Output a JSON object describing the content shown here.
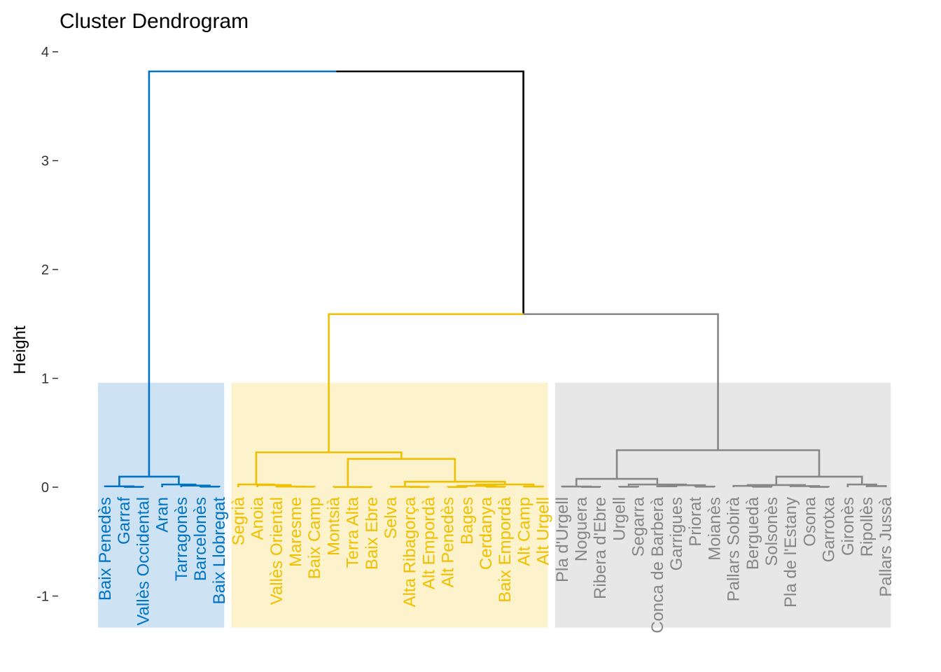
{
  "chart_data": {
    "type": "dendrogram",
    "title": "Cluster Dendrogram",
    "xlabel": "",
    "ylabel": "Height",
    "ylim": [
      -1.3,
      4.1
    ],
    "yticks": [
      -1,
      0,
      1,
      2,
      3,
      4
    ],
    "grid": false,
    "clusters": [
      {
        "name": "cluster-1",
        "color": "#0073C2",
        "fill": "#CDE3F3"
      },
      {
        "name": "cluster-2",
        "color": "#EFC000",
        "fill": "#FCF2CC"
      },
      {
        "name": "cluster-3",
        "color": "#868686",
        "fill": "#E7E7E7"
      }
    ],
    "rect_range": [
      0.96,
      -1.29
    ],
    "tree": {
      "h": 3.82,
      "c": [
        {
          "cluster": 0,
          "h": 0.097,
          "c": [
            {
              "h": 0.008,
              "c": [
                "Baix Penedès",
                {
                  "h": 0.003,
                  "c": [
                    "Garraf",
                    "Vallès Occidental"
                  ]
                }
              ]
            },
            {
              "h": 0.025,
              "c": [
                "Aran",
                {
                  "h": 0.015,
                  "c": [
                    "Tarragonès",
                    {
                      "h": 0.005,
                      "c": [
                        "Barcelonès",
                        "Baix Llobregat"
                      ]
                    }
                  ]
                }
              ]
            }
          ]
        },
        {
          "h": 1.59,
          "c": [
            {
              "cluster": 1,
              "h": 0.32,
              "c": [
                {
                  "h": 0.025,
                  "c": [
                    "Segrià",
                    {
                      "h": 0.02,
                      "c": [
                        "Anoia",
                        {
                          "h": 0.006,
                          "c": [
                            "Vallès Oriental",
                            {
                              "h": 0.004,
                              "c": [
                                "Maresme",
                                "Baix Camp"
                              ]
                            }
                          ]
                        }
                      ]
                    }
                  ]
                },
                {
                  "h": 0.26,
                  "c": [
                    {
                      "h": 0.002,
                      "c": [
                        "Montsià",
                        {
                          "h": 0.001,
                          "c": [
                            "Terra Alta",
                            "Baix Ebre"
                          ]
                        }
                      ]
                    },
                    {
                      "h": 0.05,
                      "c": [
                        {
                          "h": 0.004,
                          "c": [
                            "Selva",
                            {
                              "h": 0.002,
                              "c": [
                                "Alta Ribagorça",
                                "Alt Empordà"
                              ]
                            }
                          ]
                        },
                        {
                          "h": 0.025,
                          "c": [
                            {
                              "h": 0.012,
                              "c": [
                                {
                                  "h": 0.002,
                                  "c": [
                                    "Alt Penedès",
                                    "Bages"
                                  ]
                                },
                                {
                                  "h": 0.004,
                                  "c": [
                                    "Cerdanya",
                                    "Baix Empordà"
                                  ]
                                }
                              ]
                            },
                            {
                              "h": 0.006,
                              "c": [
                                "Alt Camp",
                                "Alt Urgell"
                              ]
                            }
                          ]
                        }
                      ]
                    }
                  ]
                }
              ]
            },
            {
              "cluster": 2,
              "h": 0.34,
              "c": [
                {
                  "h": 0.077,
                  "c": [
                    {
                      "h": 0.006,
                      "c": [
                        "Pla d'Urgell",
                        {
                          "h": 0.003,
                          "c": [
                            "Noguera",
                            "Ribera d'Ebre"
                          ]
                        }
                      ]
                    },
                    {
                      "h": 0.025,
                      "c": [
                        {
                          "h": 0.004,
                          "c": [
                            "Urgell",
                            "Segarra"
                          ]
                        },
                        {
                          "h": 0.018,
                          "c": [
                            {
                              "h": 0.008,
                              "c": [
                                "Conca de Barberà",
                                "Garrigues"
                              ]
                            },
                            {
                              "h": 0.005,
                              "c": [
                                "Priorat",
                                "Moianès"
                              ]
                            }
                          ]
                        }
                      ]
                    }
                  ]
                },
                {
                  "h": 0.097,
                  "c": [
                    {
                      "h": 0.02,
                      "c": [
                        {
                          "h": 0.012,
                          "c": [
                            "Pallars Sobirà",
                            {
                              "h": 0.004,
                              "c": [
                                "Berguedà",
                                "Solsonès"
                              ]
                            }
                          ]
                        },
                        {
                          "h": 0.01,
                          "c": [
                            "Pla de l'Estany",
                            {
                              "h": 0.003,
                              "c": [
                                "Osona",
                                "Garrotxa"
                              ]
                            }
                          ]
                        }
                      ]
                    },
                    {
                      "h": 0.025,
                      "c": [
                        "Gironès",
                        {
                          "h": 0.01,
                          "c": [
                            "Ripollès",
                            "Pallars Jussà"
                          ]
                        }
                      ]
                    }
                  ]
                }
              ]
            }
          ]
        }
      ]
    }
  }
}
